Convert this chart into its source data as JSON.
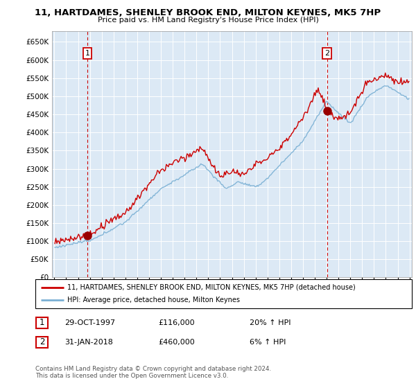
{
  "title": "11, HARTDAMES, SHENLEY BROOK END, MILTON KEYNES, MK5 7HP",
  "subtitle": "Price paid vs. HM Land Registry's House Price Index (HPI)",
  "legend_line1": "11, HARTDAMES, SHENLEY BROOK END, MILTON KEYNES, MK5 7HP (detached house)",
  "legend_line2": "HPI: Average price, detached house, Milton Keynes",
  "sale1_date": "29-OCT-1997",
  "sale1_price": "£116,000",
  "sale1_hpi": "20% ↑ HPI",
  "sale2_date": "31-JAN-2018",
  "sale2_price": "£460,000",
  "sale2_hpi": "6% ↑ HPI",
  "footer": "Contains HM Land Registry data © Crown copyright and database right 2024.\nThis data is licensed under the Open Government Licence v3.0.",
  "price_color": "#cc0000",
  "hpi_color": "#7ab0d4",
  "marker_color": "#990000",
  "ylim": [
    0,
    680000
  ],
  "yticks": [
    0,
    50000,
    100000,
    150000,
    200000,
    250000,
    300000,
    350000,
    400000,
    450000,
    500000,
    550000,
    600000,
    650000
  ],
  "chart_bg": "#dce9f5",
  "background_color": "#ffffff",
  "grid_color": "#ffffff"
}
